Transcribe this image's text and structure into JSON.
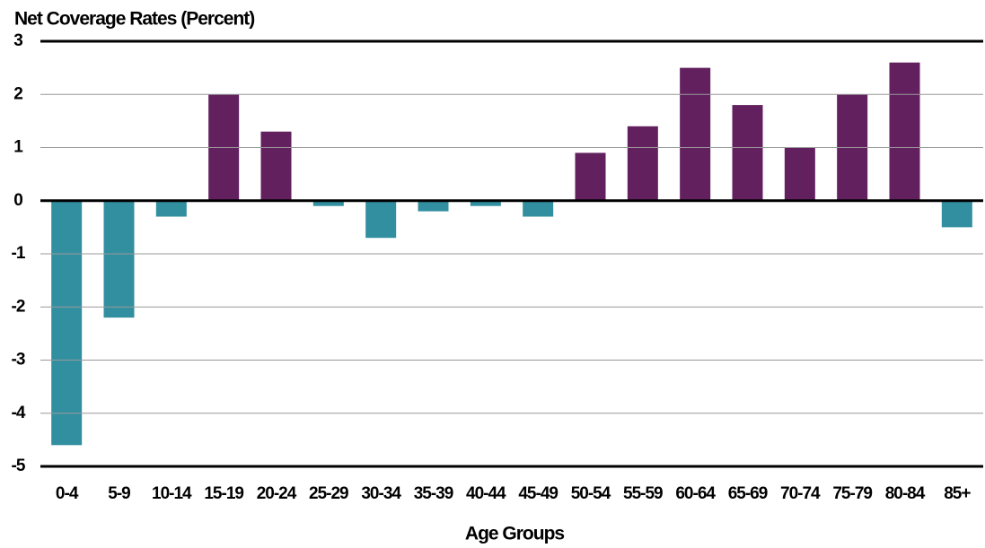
{
  "chart_data": {
    "type": "bar",
    "title": "Net Coverage Rates (Percent)",
    "x_label": "Age Groups",
    "categories": [
      "0-4",
      "5-9",
      "10-14",
      "15-19",
      "20-24",
      "25-29",
      "30-34",
      "35-39",
      "40-44",
      "45-49",
      "50-54",
      "55-59",
      "60-64",
      "65-69",
      "70-74",
      "75-79",
      "80-84",
      "85+"
    ],
    "values": [
      -4.6,
      -2.2,
      -0.3,
      2.0,
      1.3,
      -0.1,
      -0.7,
      -0.2,
      -0.1,
      -0.3,
      0.9,
      1.4,
      2.5,
      1.8,
      1.0,
      2.0,
      2.6,
      -0.5
    ],
    "positive_color": "#62205f",
    "negative_color": "#328fa0",
    "ylim": [
      -5,
      3
    ],
    "yticks": [
      -5,
      -4,
      -3,
      -2,
      -1,
      0,
      1,
      2,
      3
    ],
    "grid": true
  }
}
